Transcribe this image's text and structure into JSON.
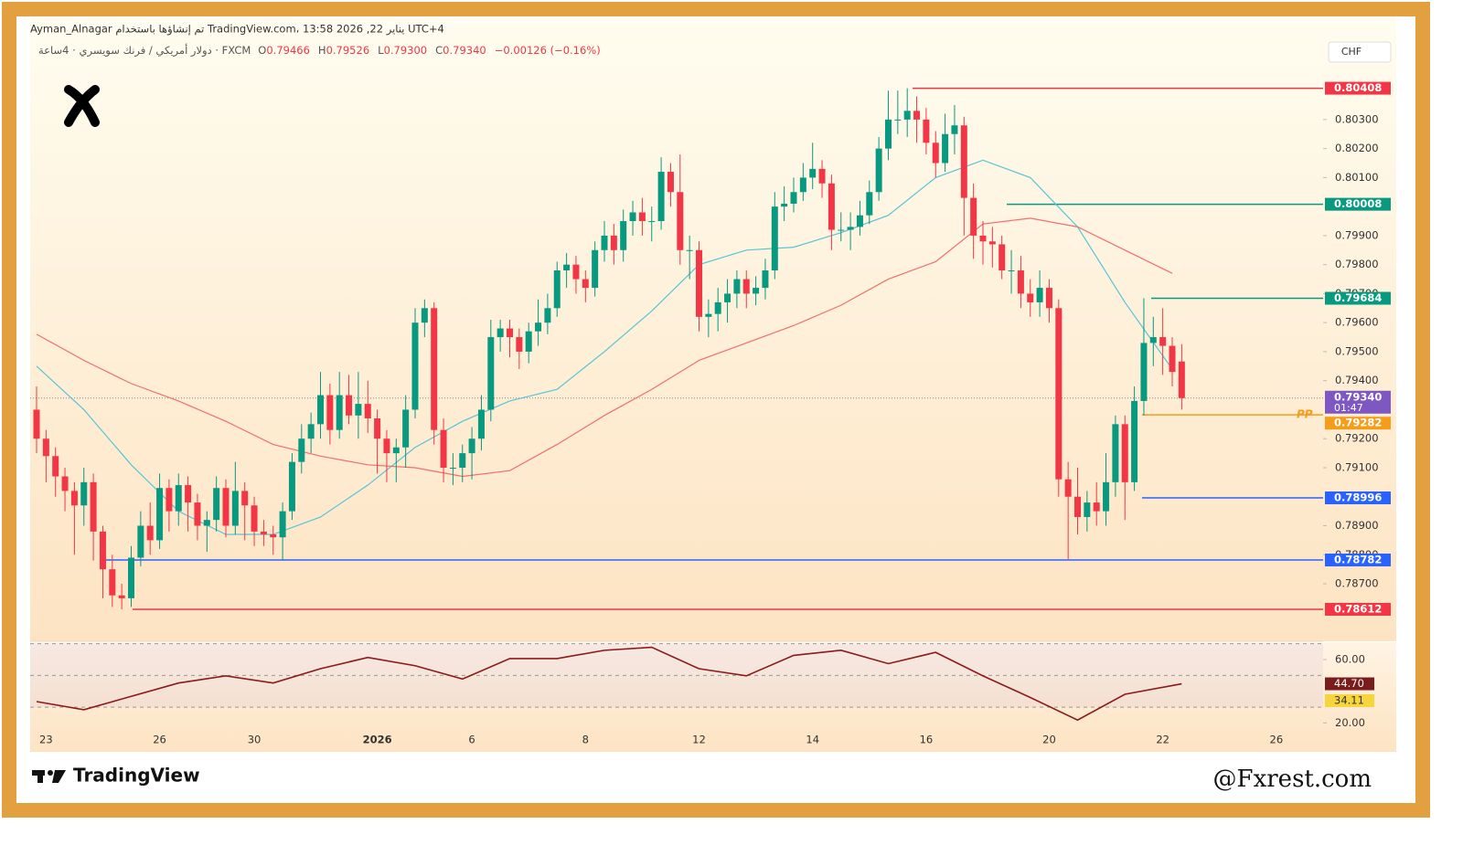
{
  "header": {
    "line1": "Ayman_Alnagar تم إنشاؤها باستخدام TradingView.com، يناير 22, 2026 13:58 UTC+4",
    "symbol": "دولار أمريكي / فرنك سويسري · 4ساعة · FXCM",
    "ohlc": [
      {
        "key": "O",
        "value": "0.79466"
      },
      {
        "key": "H",
        "value": "0.79526"
      },
      {
        "key": "L",
        "value": "0.79300"
      },
      {
        "key": "C",
        "value": "0.79340"
      }
    ],
    "change": "−0.00126 (−0.16%)",
    "currency": "CHF"
  },
  "footer": {
    "brand": "TradingView",
    "credit": "@Fxrest.com"
  },
  "chart_data": {
    "type": "candlestick",
    "categories": [
      null,
      "23",
      null,
      null,
      null,
      null,
      null,
      null,
      null,
      null,
      null,
      null,
      null,
      "26",
      null,
      null,
      null,
      null,
      null,
      null,
      null,
      null,
      null,
      "30",
      null,
      null,
      null,
      null,
      null,
      null,
      null,
      null,
      null,
      null,
      null,
      null,
      "2026",
      null,
      null,
      null,
      null,
      null,
      null,
      null,
      null,
      null,
      "6",
      null,
      null,
      null,
      null,
      null,
      null,
      null,
      null,
      null,
      null,
      null,
      "8",
      null,
      null,
      null,
      null,
      null,
      null,
      null,
      null,
      null,
      null,
      null,
      "12",
      null,
      null,
      null,
      null,
      null,
      null,
      null,
      null,
      null,
      null,
      null,
      "14",
      null,
      null,
      null,
      null,
      null,
      null,
      null,
      null,
      null,
      null,
      null,
      "16",
      null,
      null,
      null,
      null,
      null,
      null,
      null,
      null,
      null,
      null,
      null,
      null,
      "20",
      null,
      null,
      null,
      null,
      null,
      null,
      null,
      null,
      null,
      null,
      null,
      "22",
      null,
      null,
      null,
      null,
      null,
      null,
      null,
      null,
      null,
      null,
      null,
      "26"
    ],
    "open": [
      0.793,
      0.792,
      0.7914,
      0.7907,
      0.7902,
      0.7897,
      0.7905,
      0.7888,
      0.7875,
      0.7866,
      0.7865,
      0.7879,
      0.789,
      0.7885,
      0.7903,
      0.7895,
      0.7904,
      0.7898,
      0.789,
      0.7892,
      0.7903,
      0.789,
      0.7902,
      0.7897,
      0.7888,
      0.7887,
      0.7886,
      0.7895,
      0.7912,
      0.792,
      0.7925,
      0.7935,
      0.7923,
      0.7935,
      0.7928,
      0.7932,
      0.7927,
      0.792,
      0.7915,
      0.7917,
      0.793,
      0.796,
      0.7965,
      0.7923,
      0.791,
      0.791,
      0.7915,
      0.792,
      0.793,
      0.7955,
      0.7958,
      0.7955,
      0.795,
      0.7957,
      0.796,
      0.7965,
      0.7978,
      0.798,
      0.7975,
      0.7972,
      0.7985,
      0.799,
      0.7985,
      0.7995,
      0.7998,
      0.7995,
      0.7995,
      0.8012,
      0.8005,
      0.7985,
      0.7985,
      0.7962,
      0.7963,
      0.7967,
      0.797,
      0.7975,
      0.797,
      0.7972,
      0.7978,
      0.8,
      0.8001,
      0.8005,
      0.801,
      0.8013,
      0.8008,
      0.7992,
      0.7992,
      0.7993,
      0.7997,
      0.8005,
      0.802,
      0.803,
      0.803,
      0.8033,
      0.803,
      0.8022,
      0.8015,
      0.8025,
      0.8028,
      0.8003,
      0.799,
      0.7988,
      0.7987,
      0.7978,
      0.7978,
      0.797,
      0.7967,
      0.7972,
      0.7965,
      0.7906,
      0.79,
      0.7893,
      0.7898,
      0.7895,
      0.7905,
      0.7925,
      0.7905,
      0.7933,
      0.7953,
      0.7955,
      0.7952,
      0.79466,
      null,
      null,
      null,
      null,
      null,
      null,
      null,
      null,
      null,
      null
    ],
    "high": [
      0.7938,
      0.7923,
      0.7917,
      0.791,
      0.7905,
      0.791,
      0.7908,
      0.789,
      0.788,
      0.787,
      0.7883,
      0.7895,
      0.7898,
      0.7908,
      0.7906,
      0.7908,
      0.7907,
      0.7901,
      0.7895,
      0.7907,
      0.7906,
      0.7912,
      0.7905,
      0.79,
      0.7892,
      0.789,
      0.7898,
      0.7915,
      0.7925,
      0.7929,
      0.7943,
      0.7939,
      0.7943,
      0.7942,
      0.7943,
      0.794,
      0.793,
      0.7923,
      0.792,
      0.7935,
      0.7965,
      0.7968,
      0.7967,
      0.7927,
      0.7915,
      0.7918,
      0.7924,
      0.7935,
      0.7961,
      0.7961,
      0.7961,
      0.7958,
      0.796,
      0.7968,
      0.797,
      0.7981,
      0.7984,
      0.7983,
      0.7978,
      0.7988,
      0.7995,
      0.7994,
      0.7999,
      0.8002,
      0.8003,
      0.8,
      0.8017,
      0.8015,
      0.8018,
      0.799,
      0.7988,
      0.7968,
      0.7972,
      0.7975,
      0.7978,
      0.7978,
      0.7976,
      0.7982,
      0.8005,
      0.8007,
      0.801,
      0.8015,
      0.8022,
      0.8016,
      0.8011,
      0.7998,
      0.7998,
      0.8002,
      0.8009,
      0.8024,
      0.804,
      0.804,
      0.80408,
      0.8038,
      0.8034,
      0.8026,
      0.8032,
      0.8035,
      0.8031,
      0.8008,
      0.7995,
      0.7993,
      0.799,
      0.7985,
      0.7983,
      0.7975,
      0.7978,
      0.7975,
      0.7968,
      0.7912,
      0.791,
      0.7902,
      0.7905,
      0.7915,
      0.7928,
      0.7928,
      0.7938,
      0.79684,
      0.7962,
      0.7965,
      0.7955,
      0.79526,
      null,
      null,
      null,
      null,
      null,
      null,
      null,
      null,
      null,
      null
    ],
    "low": [
      0.7915,
      0.7905,
      0.79,
      0.7895,
      0.788,
      0.789,
      0.7878,
      0.7865,
      0.7862,
      0.78612,
      0.7862,
      0.7876,
      0.788,
      0.7882,
      0.7888,
      0.789,
      0.7888,
      0.7885,
      0.7881,
      0.7888,
      0.7886,
      0.7887,
      0.7885,
      0.7883,
      0.7883,
      0.788,
      0.7878,
      0.7892,
      0.7908,
      0.7915,
      0.792,
      0.7918,
      0.792,
      0.7925,
      0.792,
      0.7922,
      0.7908,
      0.7905,
      0.7905,
      0.791,
      0.7927,
      0.7955,
      0.7918,
      0.7905,
      0.7904,
      0.7905,
      0.7906,
      0.7916,
      0.7926,
      0.795,
      0.7948,
      0.7944,
      0.7946,
      0.7952,
      0.7956,
      0.7962,
      0.7972,
      0.797,
      0.7967,
      0.7969,
      0.7981,
      0.798,
      0.7981,
      0.799,
      0.799,
      0.7988,
      0.7992,
      0.8,
      0.798,
      0.7975,
      0.7957,
      0.7955,
      0.7957,
      0.796,
      0.7965,
      0.7965,
      0.7966,
      0.7968,
      0.7975,
      0.7995,
      0.7998,
      0.8002,
      0.8006,
      0.8003,
      0.7985,
      0.7988,
      0.7985,
      0.799,
      0.7994,
      0.8002,
      0.8016,
      0.8025,
      0.8024,
      0.8022,
      0.8018,
      0.801,
      0.8012,
      0.8018,
      0.799,
      0.7982,
      0.798,
      0.7979,
      0.7975,
      0.797,
      0.7965,
      0.7962,
      0.7962,
      0.796,
      0.79,
      0.78782,
      0.7887,
      0.7888,
      0.789,
      0.789,
      0.79,
      0.7892,
      0.7902,
      0.7928,
      0.7945,
      0.7942,
      0.7938,
      0.793,
      null,
      null,
      null,
      null,
      null,
      null,
      null,
      null,
      null,
      null
    ],
    "close": [
      0.792,
      0.7914,
      0.7907,
      0.7902,
      0.7897,
      0.7905,
      0.7888,
      0.7875,
      0.7866,
      0.7865,
      0.7879,
      0.789,
      0.7885,
      0.7903,
      0.7895,
      0.7904,
      0.7898,
      0.789,
      0.7892,
      0.7903,
      0.789,
      0.7902,
      0.7897,
      0.7888,
      0.7887,
      0.7886,
      0.7895,
      0.7912,
      0.792,
      0.7925,
      0.7935,
      0.7923,
      0.7935,
      0.7928,
      0.7932,
      0.7927,
      0.792,
      0.7915,
      0.7917,
      0.793,
      0.796,
      0.7965,
      0.7923,
      0.791,
      0.791,
      0.7915,
      0.792,
      0.793,
      0.7955,
      0.7958,
      0.7955,
      0.795,
      0.7957,
      0.796,
      0.7965,
      0.7978,
      0.798,
      0.7975,
      0.7972,
      0.7985,
      0.799,
      0.7985,
      0.7995,
      0.7998,
      0.7995,
      0.7995,
      0.8012,
      0.8005,
      0.7985,
      0.7985,
      0.7962,
      0.7963,
      0.7967,
      0.797,
      0.7975,
      0.797,
      0.7972,
      0.7978,
      0.8,
      0.8001,
      0.8005,
      0.801,
      0.8013,
      0.8008,
      0.7992,
      0.7992,
      0.7993,
      0.7997,
      0.8005,
      0.802,
      0.803,
      0.803,
      0.8033,
      0.803,
      0.8022,
      0.8015,
      0.8025,
      0.8028,
      0.8003,
      0.799,
      0.7988,
      0.7987,
      0.7978,
      0.7978,
      0.797,
      0.7967,
      0.7972,
      0.7965,
      0.7906,
      0.79,
      0.7893,
      0.7898,
      0.7895,
      0.7905,
      0.7925,
      0.7905,
      0.7933,
      0.7953,
      0.7955,
      0.7952,
      0.7943,
      0.7934,
      null,
      null,
      null,
      null,
      null,
      null,
      null,
      null,
      null,
      null
    ],
    "up_color": "#089981",
    "down_color": "#f23645",
    "ylim": [
      0.78508,
      0.80435
    ],
    "yticks": [
      {
        "value": 0.787,
        "label": "0.78700"
      },
      {
        "value": 0.788,
        "label": "0.78800"
      },
      {
        "value": 0.789,
        "label": "0.78900"
      },
      {
        "value": 0.791,
        "label": "0.79100"
      },
      {
        "value": 0.792,
        "label": "0.79200"
      },
      {
        "value": 0.794,
        "label": "0.79400"
      },
      {
        "value": 0.795,
        "label": "0.79500"
      },
      {
        "value": 0.796,
        "label": "0.79600"
      },
      {
        "value": 0.797,
        "label": "0.79700"
      },
      {
        "value": 0.798,
        "label": "0.79800"
      },
      {
        "value": 0.799,
        "label": "0.79900"
      },
      {
        "value": 0.801,
        "label": "0.80100"
      },
      {
        "value": 0.802,
        "label": "0.80200"
      },
      {
        "value": 0.803,
        "label": "0.80300"
      }
    ],
    "overlays": [
      {
        "color": "#58c4d6",
        "x": [
          0,
          5,
          10,
          15,
          20,
          25,
          30,
          35,
          40,
          45,
          50,
          55,
          60,
          65,
          70,
          75,
          80,
          85,
          90,
          95,
          100,
          105,
          110,
          115,
          120
        ],
        "values": [
          0.7945,
          0.793,
          0.7911,
          0.7895,
          0.7887,
          0.7887,
          0.7893,
          0.7904,
          0.7917,
          0.7926,
          0.7933,
          0.7937,
          0.795,
          0.7964,
          0.798,
          0.7985,
          0.7986,
          0.7991,
          0.7997,
          0.801,
          0.8016,
          0.801,
          0.7993,
          0.7967,
          0.7944
        ]
      },
      {
        "color": "#ef6f6f",
        "x": [
          0,
          5,
          10,
          15,
          20,
          25,
          30,
          35,
          40,
          45,
          50,
          55,
          60,
          65,
          70,
          75,
          80,
          85,
          90,
          95,
          100,
          105,
          110,
          115,
          120
        ],
        "values": [
          0.7956,
          0.7947,
          0.7939,
          0.7933,
          0.7926,
          0.7918,
          0.7914,
          0.7911,
          0.791,
          0.7907,
          0.7909,
          0.7918,
          0.7928,
          0.7937,
          0.7947,
          0.7953,
          0.7959,
          0.7966,
          0.7975,
          0.7981,
          0.7994,
          0.7996,
          0.7993,
          0.7985,
          0.7977
        ]
      }
    ],
    "price_lines": [
      {
        "value": 0.80408,
        "label": "0.80408",
        "color": "#f23645"
      },
      {
        "value": 0.80008,
        "label": "0.80008",
        "color": "#089981"
      },
      {
        "value": 0.79684,
        "label": "0.79684",
        "color": "#089981"
      },
      {
        "value": 0.78996,
        "label": "0.78996",
        "color": "#2962ff"
      },
      {
        "value": 0.78782,
        "label": "0.78782",
        "color": "#2962ff"
      },
      {
        "value": 0.78612,
        "label": "0.78612",
        "color": "#f23645"
      }
    ],
    "last_price": {
      "value": 0.7934,
      "label": "0.79340",
      "countdown": "01:47",
      "color": "#7e57c2"
    },
    "pivot": {
      "name": "PP",
      "value": 0.79282,
      "label": "0.79282",
      "color": "#f59d19"
    },
    "rsi": {
      "type": "line",
      "color": "#8b1a1a",
      "x": [
        0,
        5,
        10,
        15,
        20,
        25,
        30,
        35,
        40,
        45,
        50,
        55,
        60,
        65,
        70,
        75,
        80,
        85,
        90,
        95,
        100,
        105,
        110,
        115,
        121
      ],
      "values": [
        33.5,
        28.4,
        36.8,
        45.2,
        49.7,
        45.2,
        54.2,
        61.3,
        56.1,
        47.7,
        60.6,
        60.6,
        65.8,
        67.7,
        54.2,
        49.7,
        62.6,
        65.8,
        57.4,
        64.5,
        49.7,
        36.1,
        21.9,
        38.1,
        44.7
      ],
      "ylim": [
        17.4,
        70.9
      ],
      "yticks": [
        {
          "value": 60,
          "label": "60.00"
        },
        {
          "value": 20,
          "label": "20.00"
        }
      ],
      "bands": [
        70,
        50,
        30
      ],
      "badges": [
        {
          "value": 44.7,
          "label": "44.70",
          "color": "#7a1c1c",
          "text_color": "#ffffff"
        },
        {
          "value": 34.11,
          "label": "34.11",
          "color": "#f7d53c",
          "text_color": "#333333"
        }
      ]
    }
  }
}
